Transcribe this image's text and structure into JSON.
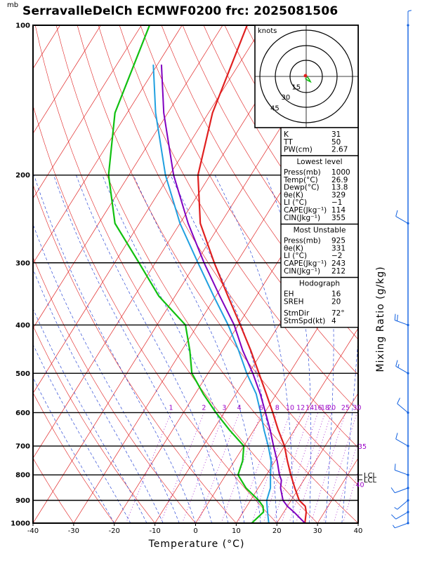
{
  "title": "SerravalleDelCh ECMWF0200 frc: 2025081506",
  "pressure_unit": "mb",
  "colors": {
    "temperature": "#e02020",
    "dewpoint": "#10c010",
    "parcel": "#8000c0",
    "wetbulb": "#20a0e0",
    "isotherm": "#e02020",
    "dry_adiabat": "#e02020",
    "moist_adiabat": "#1030d0",
    "mixing_ratio": "#9a00c8",
    "grid": "#000000"
  },
  "chart_data": {
    "type": "skew-t",
    "xlabel": "Temperature (°C)",
    "ylabel_right": "Mixing Ratio (g/kg)",
    "xlim": [
      -40,
      40
    ],
    "x_ticks": [
      "-40",
      "-30",
      "-20",
      "-10",
      "0",
      "10",
      "20",
      "30",
      "40"
    ],
    "pressure_levels": [
      100,
      200,
      300,
      400,
      500,
      600,
      700,
      800,
      900,
      1000
    ],
    "isotherms": [
      -110,
      -100,
      -90,
      -80,
      -70,
      -60,
      -50,
      -40,
      -30,
      -20,
      -10,
      0,
      10,
      20,
      30,
      40
    ],
    "mixing_ratio_lines": [
      {
        "label": "1",
        "value": 1
      },
      {
        "label": "2",
        "value": 2
      },
      {
        "label": "3",
        "value": 3
      },
      {
        "label": "4",
        "value": 4
      },
      {
        "label": "6",
        "value": 6
      },
      {
        "label": "8",
        "value": 8
      },
      {
        "label": "10",
        "value": 10
      },
      {
        "label": "12",
        "value": 12
      },
      {
        "label": "14",
        "value": 14
      },
      {
        "label": "16",
        "value": 16
      },
      {
        "label": "18",
        "value": 18
      },
      {
        "label": "20",
        "value": 20
      },
      {
        "label": "25",
        "value": 25
      },
      {
        "label": "30",
        "value": 30
      },
      {
        "label": "35",
        "value": 35
      },
      {
        "label": "40",
        "value": 40
      }
    ],
    "series": [
      {
        "name": "temperature",
        "points": [
          [
            1000,
            26.9
          ],
          [
            950,
            25.5
          ],
          [
            925,
            24.4
          ],
          [
            900,
            22.0
          ],
          [
            850,
            19.0
          ],
          [
            800,
            16.0
          ],
          [
            750,
            13.0
          ],
          [
            700,
            10.0
          ],
          [
            650,
            6.0
          ],
          [
            600,
            2.0
          ],
          [
            550,
            -2.5
          ],
          [
            500,
            -7.5
          ],
          [
            450,
            -13.0
          ],
          [
            400,
            -19.5
          ],
          [
            350,
            -27.0
          ],
          [
            300,
            -35.5
          ],
          [
            250,
            -45.0
          ],
          [
            200,
            -53.0
          ],
          [
            150,
            -59.0
          ],
          [
            100,
            -64.0
          ]
        ]
      },
      {
        "name": "dewpoint",
        "points": [
          [
            1000,
            13.8
          ],
          [
            950,
            15.0
          ],
          [
            925,
            14.0
          ],
          [
            900,
            12.0
          ],
          [
            850,
            7.0
          ],
          [
            800,
            3.0
          ],
          [
            750,
            2.0
          ],
          [
            700,
            0.0
          ],
          [
            650,
            -6.0
          ],
          [
            600,
            -12.0
          ],
          [
            550,
            -18.0
          ],
          [
            500,
            -24.0
          ],
          [
            450,
            -28.0
          ],
          [
            400,
            -33.0
          ],
          [
            350,
            -44.0
          ],
          [
            300,
            -54.0
          ],
          [
            250,
            -66.0
          ],
          [
            200,
            -75.0
          ],
          [
            150,
            -83.0
          ],
          [
            100,
            -88.0
          ]
        ]
      },
      {
        "name": "parcel",
        "points": [
          [
            1000,
            26.9
          ],
          [
            950,
            22.5
          ],
          [
            925,
            20.0
          ],
          [
            900,
            18.0
          ],
          [
            850,
            15.5
          ],
          [
            820,
            14.5
          ],
          [
            800,
            13.2
          ],
          [
            750,
            10.5
          ],
          [
            700,
            7.3
          ],
          [
            650,
            4.0
          ],
          [
            600,
            0.2
          ],
          [
            550,
            -4.0
          ],
          [
            500,
            -9.0
          ],
          [
            450,
            -15.0
          ],
          [
            400,
            -21.0
          ],
          [
            350,
            -29.0
          ],
          [
            300,
            -38.0
          ],
          [
            250,
            -48.0
          ],
          [
            200,
            -59.0
          ],
          [
            150,
            -71.0
          ],
          [
            120,
            -79.0
          ]
        ]
      },
      {
        "name": "wetbulb",
        "points": [
          [
            1000,
            18.0
          ],
          [
            950,
            16.0
          ],
          [
            925,
            15.0
          ],
          [
            900,
            14.0
          ],
          [
            850,
            13.0
          ],
          [
            800,
            11.0
          ],
          [
            750,
            9.0
          ],
          [
            700,
            6.0
          ],
          [
            650,
            2.5
          ],
          [
            600,
            -1.0
          ],
          [
            550,
            -5.0
          ],
          [
            500,
            -10.5
          ],
          [
            450,
            -16.0
          ],
          [
            400,
            -22.5
          ],
          [
            350,
            -30.5
          ],
          [
            300,
            -39.5
          ],
          [
            250,
            -50.0
          ],
          [
            200,
            -61.0
          ],
          [
            150,
            -73.0
          ],
          [
            120,
            -81.0
          ]
        ]
      }
    ],
    "lcl_labels": [
      {
        "text": "LCL",
        "p": 800
      },
      {
        "text": "LCL",
        "p": 818
      }
    ],
    "wind_profile": [
      {
        "p": 100,
        "dir": 0,
        "kt": 3
      },
      {
        "p": 250,
        "dir": 300,
        "kt": 12
      },
      {
        "p": 400,
        "dir": 290,
        "kt": 18
      },
      {
        "p": 500,
        "dir": 300,
        "kt": 16
      },
      {
        "p": 600,
        "dir": 310,
        "kt": 12
      },
      {
        "p": 700,
        "dir": 300,
        "kt": 8
      },
      {
        "p": 800,
        "dir": 290,
        "kt": 12
      },
      {
        "p": 850,
        "dir": 250,
        "kt": 8
      },
      {
        "p": 900,
        "dir": 230,
        "kt": 6
      },
      {
        "p": 950,
        "dir": 240,
        "kt": 10
      },
      {
        "p": 1000,
        "dir": 250,
        "kt": 6
      }
    ],
    "hodograph": {
      "unit": "knots",
      "rings": [
        "15",
        "30",
        "45"
      ],
      "trace": [
        [
          0,
          0
        ],
        [
          1.5,
          -1
        ],
        [
          3,
          -3
        ],
        [
          4,
          -5
        ],
        [
          2,
          -4
        ],
        [
          -1,
          -2
        ]
      ]
    }
  },
  "indices": {
    "basic": [
      {
        "label": "K",
        "value": "31"
      },
      {
        "label": "TT",
        "value": "50"
      },
      {
        "label": "PW(cm)",
        "value": "2.67"
      }
    ],
    "lowest_level": {
      "header": "Lowest level",
      "rows": [
        {
          "label": "Press(mb)",
          "value": "1000"
        },
        {
          "label": "Temp(°C)",
          "value": "26.9"
        },
        {
          "label": "Dewp(°C)",
          "value": "13.8"
        },
        {
          "label": "θe(K)",
          "value": "329"
        },
        {
          "label": "LI (°C)",
          "value": "−1"
        },
        {
          "label": "CAPE(Jkg⁻¹)",
          "value": "114"
        },
        {
          "label": "CIN(Jkg⁻¹)",
          "value": "355"
        }
      ]
    },
    "most_unstable": {
      "header": "Most Unstable",
      "rows": [
        {
          "label": "Press(mb)",
          "value": "925"
        },
        {
          "label": "θe(K)",
          "value": "331"
        },
        {
          "label": "LI (°C)",
          "value": "−2"
        },
        {
          "label": "CAPE(Jkg⁻¹)",
          "value": "243"
        },
        {
          "label": "CIN(Jkg⁻¹)",
          "value": "212"
        }
      ]
    },
    "hodograph_box": {
      "header": "Hodograph",
      "rows": [
        {
          "label": "EH",
          "value": "16"
        },
        {
          "label": "SREH",
          "value": "20"
        },
        {
          "label": "StmDir",
          "value": "72°"
        },
        {
          "label": "StmSpd(kt)",
          "value": "4"
        }
      ]
    }
  }
}
